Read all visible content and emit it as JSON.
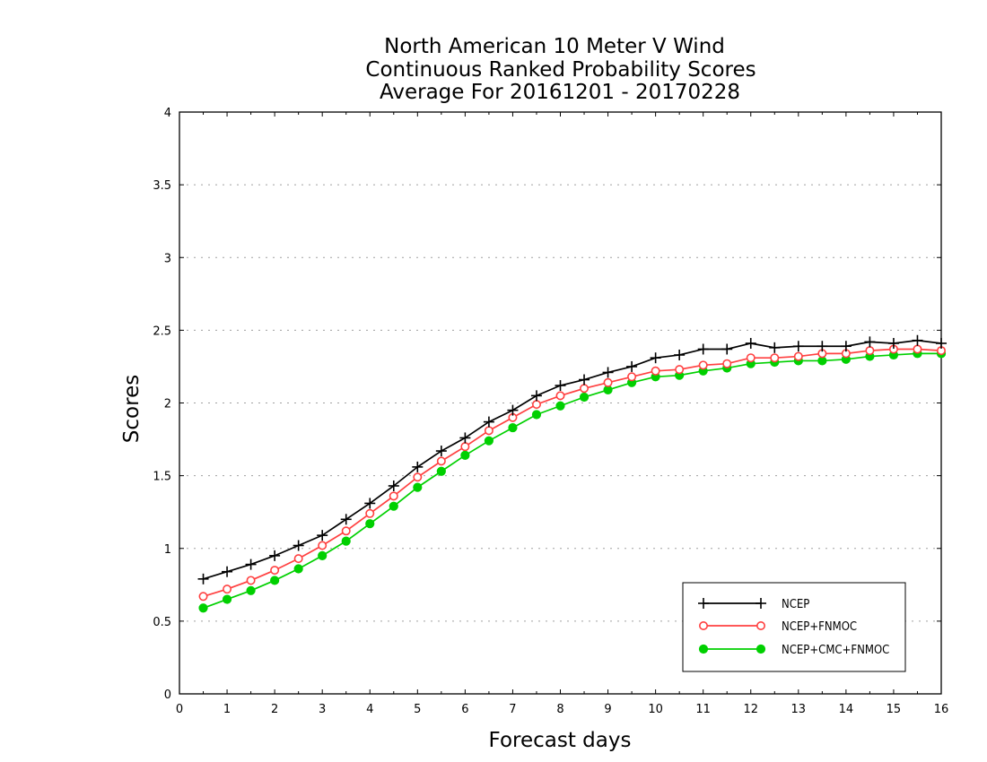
{
  "chart_data": {
    "type": "line",
    "title": [
      "North American 10 Meter V Wind",
      "Continuous Ranked Probability Scores",
      "Average For 20161201 - 20170228"
    ],
    "xlabel": "Forecast days",
    "ylabel": "Scores",
    "xlim": [
      0,
      16
    ],
    "ylim": [
      0,
      4
    ],
    "xticks": [
      "0",
      "1",
      "2",
      "3",
      "4",
      "5",
      "6",
      "7",
      "8",
      "9",
      "10",
      "11",
      "12",
      "13",
      "14",
      "15",
      "16"
    ],
    "yticks": [
      "0",
      "0.5",
      "1",
      "1.5",
      "2",
      "2.5",
      "3",
      "3.5",
      "4"
    ],
    "grid": "horizontal dotted",
    "legend_position": "bottom-right",
    "x": [
      0.5,
      1,
      1.5,
      2,
      2.5,
      3,
      3.5,
      4,
      4.5,
      5,
      5.5,
      6,
      6.5,
      7,
      7.5,
      8,
      8.5,
      9,
      9.5,
      10,
      10.5,
      11,
      11.5,
      12,
      12.5,
      13,
      13.5,
      14,
      14.5,
      15,
      15.5,
      16
    ],
    "series": [
      {
        "name": "NCEP",
        "color": "#000000",
        "marker": "plus",
        "values": [
          0.79,
          0.84,
          0.89,
          0.95,
          1.02,
          1.09,
          1.2,
          1.31,
          1.43,
          1.56,
          1.67,
          1.76,
          1.87,
          1.95,
          2.05,
          2.12,
          2.16,
          2.21,
          2.25,
          2.31,
          2.33,
          2.37,
          2.37,
          2.41,
          2.38,
          2.39,
          2.39,
          2.39,
          2.42,
          2.41,
          2.43,
          2.41
        ]
      },
      {
        "name": "NCEP+FNMOC",
        "color": "#ff4040",
        "marker": "open-circle",
        "values": [
          0.67,
          0.72,
          0.78,
          0.85,
          0.93,
          1.02,
          1.12,
          1.24,
          1.36,
          1.49,
          1.6,
          1.7,
          1.81,
          1.9,
          1.99,
          2.05,
          2.1,
          2.14,
          2.18,
          2.22,
          2.23,
          2.26,
          2.27,
          2.31,
          2.31,
          2.32,
          2.34,
          2.34,
          2.36,
          2.37,
          2.37,
          2.36
        ]
      },
      {
        "name": "NCEP+CMC+FNMOC",
        "color": "#00d000",
        "marker": "filled-circle",
        "values": [
          0.59,
          0.65,
          0.71,
          0.78,
          0.86,
          0.95,
          1.05,
          1.17,
          1.29,
          1.42,
          1.53,
          1.64,
          1.74,
          1.83,
          1.92,
          1.98,
          2.04,
          2.09,
          2.14,
          2.18,
          2.19,
          2.22,
          2.24,
          2.27,
          2.28,
          2.29,
          2.29,
          2.3,
          2.32,
          2.33,
          2.34,
          2.34
        ]
      }
    ]
  }
}
